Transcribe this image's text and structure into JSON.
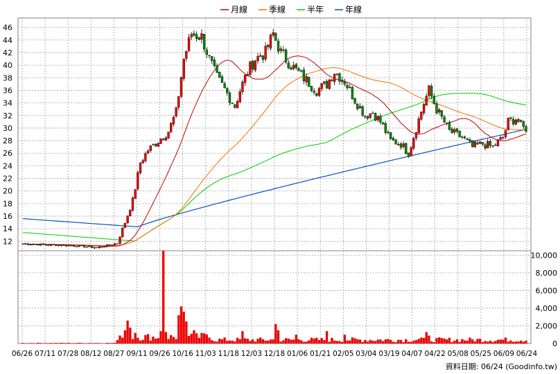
{
  "chart_data": {
    "type": "candlestick",
    "legend": {
      "placement": "top-center",
      "items": [
        {
          "label": "月線",
          "color": "#c00000"
        },
        {
          "label": "季線",
          "color": "#f07000"
        },
        {
          "label": "半年",
          "color": "#00cc00"
        },
        {
          "label": "年線",
          "color": "#0050c0"
        }
      ]
    },
    "price_axis": {
      "ticks": [
        12,
        14,
        16,
        18,
        20,
        22,
        24,
        26,
        28,
        30,
        32,
        34,
        36,
        38,
        40,
        42,
        44,
        46
      ],
      "range": [
        10.5,
        47.5
      ],
      "grid": true
    },
    "volume_axis": {
      "ticks": [
        0,
        2000,
        4000,
        6000,
        8000,
        10000
      ],
      "tick_labels": [
        "0",
        "2,000",
        "4,000",
        "6,000",
        "8,000",
        "10,000"
      ],
      "range": [
        0,
        10500
      ],
      "grid": true
    },
    "x_labels": [
      "06/26",
      "07/11",
      "07/28",
      "08/12",
      "08/27",
      "09/11",
      "09/26",
      "10/16",
      "11/03",
      "11/18",
      "12/03",
      "12/18",
      "01/06",
      "01/21",
      "02/05",
      "03/04",
      "03/19",
      "04/07",
      "04/22",
      "05/08",
      "05/25",
      "06/09",
      "06/24"
    ],
    "series_colors": {
      "up": "#ee0000",
      "down": "#008800",
      "volume": "#ee0000"
    },
    "price_keypoints": [
      [
        0,
        11.6
      ],
      [
        20,
        11.3
      ],
      [
        29,
        11.0
      ],
      [
        34,
        11.4
      ],
      [
        37,
        11.7
      ],
      [
        40,
        15.0
      ],
      [
        43,
        18.5
      ],
      [
        46,
        24.5
      ],
      [
        49,
        26.5
      ],
      [
        53,
        28.0
      ],
      [
        57,
        29.5
      ],
      [
        60,
        32.5
      ],
      [
        63,
        41.0
      ],
      [
        66,
        45.0
      ],
      [
        70,
        44.5
      ],
      [
        73,
        41.0
      ],
      [
        76,
        38.0
      ],
      [
        80,
        35.5
      ],
      [
        83,
        33.5
      ],
      [
        85,
        36.0
      ],
      [
        88,
        39.0
      ],
      [
        91,
        41.0
      ],
      [
        95,
        42.0
      ],
      [
        98,
        45.0
      ],
      [
        101,
        42.0
      ],
      [
        105,
        40.0
      ],
      [
        110,
        38.0
      ],
      [
        115,
        36.0
      ],
      [
        119,
        37.0
      ],
      [
        122,
        39.0
      ],
      [
        126,
        37.5
      ],
      [
        130,
        34.5
      ],
      [
        134,
        32.0
      ],
      [
        137,
        32.5
      ],
      [
        140,
        31.0
      ],
      [
        144,
        28.0
      ],
      [
        148,
        27.5
      ],
      [
        151,
        26.0
      ],
      [
        154,
        30.0
      ],
      [
        157,
        34.0
      ],
      [
        159,
        36.0
      ],
      [
        162,
        33.0
      ],
      [
        167,
        29.5
      ],
      [
        172,
        28.5
      ],
      [
        176,
        27.0
      ],
      [
        180,
        27.5
      ],
      [
        184,
        27.0
      ],
      [
        188,
        28.5
      ],
      [
        190,
        31.0
      ],
      [
        193,
        31.5
      ],
      [
        196,
        30.0
      ]
    ],
    "volume_spikes": [
      [
        38,
        900
      ],
      [
        40,
        1500
      ],
      [
        41,
        2600
      ],
      [
        42,
        1800
      ],
      [
        44,
        1200
      ],
      [
        54,
        1400
      ],
      [
        55,
        10500
      ],
      [
        56,
        1300
      ],
      [
        61,
        3200
      ],
      [
        62,
        4200
      ],
      [
        63,
        3600
      ],
      [
        64,
        2500
      ],
      [
        67,
        1500
      ],
      [
        70,
        1200
      ],
      [
        86,
        1400
      ],
      [
        99,
        2200
      ],
      [
        100,
        1500
      ],
      [
        107,
        1000
      ],
      [
        119,
        1400
      ],
      [
        126,
        1000
      ],
      [
        158,
        1300
      ],
      [
        159,
        900
      ]
    ],
    "moving_averages": {
      "month": 20,
      "quarter": 60,
      "half_year": 120,
      "year_start": 15.6,
      "year_dip": 14.3,
      "year_end": 29.8,
      "half_start": 13.4,
      "half_dip": 12.0
    },
    "footer_text": "資料日期: 06/24  (Goodinfo.tw)"
  }
}
